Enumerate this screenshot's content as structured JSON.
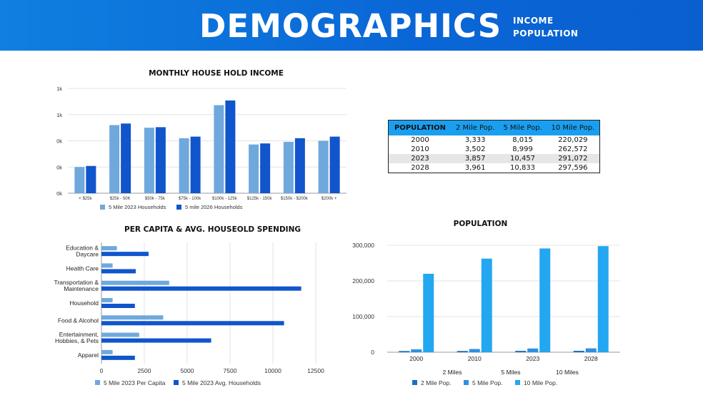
{
  "header": {
    "title": "DEMOGRAPHICS",
    "subtitle_line1": "INCOME",
    "subtitle_line2": "POPULATION",
    "background_color": "#0a66d6"
  },
  "income_chart": {
    "title": "MONTHLY HOUSE HOLD INCOME"
  },
  "spending_chart": {
    "title": "PER CAPITA & AVG. HOUSEOLD SPENDING"
  },
  "population_chart": {
    "title": "POPULATION",
    "extra_labels": [
      "2 Miles",
      "5 Miles",
      "10 Miles"
    ]
  },
  "population_table": {
    "headers": [
      "POPULATION",
      "2 Mile Pop.",
      "5 Mile Pop.",
      "10 Mile Pop."
    ],
    "rows": [
      [
        "2000",
        "3,333",
        "8,015",
        "220,029"
      ],
      [
        "2010",
        "3,502",
        "8,999",
        "262,572"
      ],
      [
        "2023",
        "3,857",
        "10,457",
        "291,072"
      ],
      [
        "2028",
        "3,961",
        "10,833",
        "297,596"
      ]
    ],
    "header_color": "#1a9ff0",
    "highlight_row": 2
  },
  "chart_data": [
    {
      "type": "bar",
      "title": "MONTHLY HOUSE HOLD INCOME",
      "categories": [
        "< $25k",
        "$25k - 50K",
        "$50k - 75k",
        "$75k - 100k",
        "$100k - 125k",
        "$125k - 150k",
        "$150k - $200k",
        "$200k +"
      ],
      "ytick_labels": [
        "0k",
        "0k",
        "0k",
        "1k",
        "1k"
      ],
      "ylim": [
        0,
        2000
      ],
      "grid": true,
      "legend": "bottom",
      "series": [
        {
          "name": "5 Mile 2023 Households",
          "color": "#6fa8dc",
          "values": [
            500,
            1300,
            1250,
            1050,
            1680,
            930,
            980,
            1000
          ]
        },
        {
          "name": "5 mile 2026 Households",
          "color": "#1155cc",
          "values": [
            520,
            1330,
            1260,
            1080,
            1770,
            950,
            1050,
            1080
          ]
        }
      ]
    },
    {
      "type": "bar",
      "orientation": "horizontal",
      "title": "PER CAPITA & AVG. HOUSEOLD SPENDING",
      "categories": [
        "Education &\nDaycare",
        "Health Care",
        "Transportation &\nMaintenance",
        "Household",
        "Food & Alcohol",
        "Entertainment,\nHobbies, & Pets",
        "Apparel"
      ],
      "xticks": [
        0,
        2500,
        5000,
        7500,
        10000,
        12500
      ],
      "xlim": [
        0,
        12500
      ],
      "grid": true,
      "legend": "bottom",
      "series": [
        {
          "name": "5 Mile 2023 Per Capita",
          "color": "#6fa8dc",
          "values": [
            900,
            650,
            3950,
            650,
            3600,
            2200,
            650
          ]
        },
        {
          "name": "5 Mile 2023 Avg. Households",
          "color": "#1155cc",
          "values": [
            2750,
            2000,
            11650,
            1950,
            10650,
            6400,
            1950
          ]
        }
      ]
    },
    {
      "type": "bar",
      "title": "POPULATION",
      "categories": [
        "2000",
        "2010",
        "2023",
        "2028"
      ],
      "yticks": [
        0,
        100000,
        200000,
        300000
      ],
      "ytick_labels": [
        "0",
        "100,000",
        "200,000",
        "300,000"
      ],
      "ylim": [
        0,
        300000
      ],
      "grid": true,
      "legend": "bottom",
      "series": [
        {
          "name": "2 Mile Pop.",
          "color": "#1a6fc4",
          "values": [
            3333,
            3502,
            3857,
            3961
          ]
        },
        {
          "name": "5 Mile Pop.",
          "color": "#2f8fe0",
          "values": [
            8015,
            8999,
            10457,
            10833
          ]
        },
        {
          "name": "10 Mile Pop.",
          "color": "#22a7f0",
          "values": [
            220029,
            262572,
            291072,
            297596
          ]
        }
      ]
    }
  ]
}
